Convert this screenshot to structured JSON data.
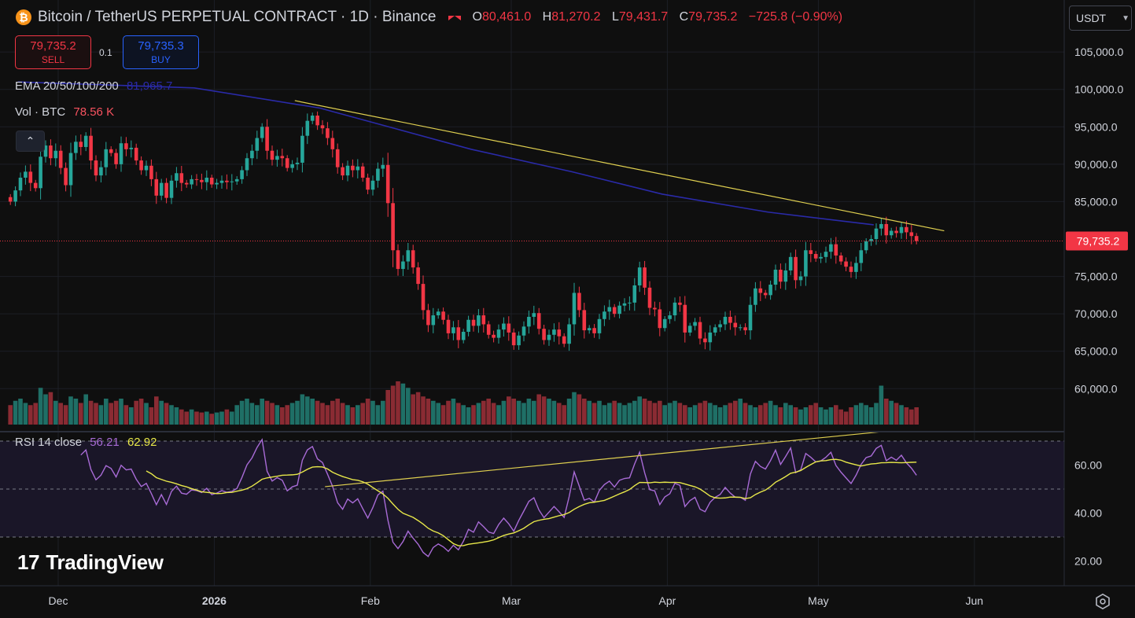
{
  "header": {
    "title": "Bitcoin / TetherUS PERPETUAL CONTRACT · 1D · Binance",
    "ohlc": {
      "o_label": "O",
      "o": "80,461.0",
      "h_label": "H",
      "h": "81,270.2",
      "l_label": "L",
      "l": "79,431.7",
      "c_label": "C",
      "c": "79,735.2",
      "change": "−725.8 (−0.90%)"
    },
    "currency": "USDT"
  },
  "trade": {
    "sell_price": "79,735.2",
    "sell_label": "SELL",
    "qty": "0.1",
    "buy_price": "79,735.3",
    "buy_label": "BUY"
  },
  "legends": {
    "ema_label": "EMA 20/50/100/200",
    "ema_value": "81,965.7",
    "vol_label": "Vol · BTC",
    "vol_value": "78.56 K",
    "rsi_label": "RSI 14 close",
    "rsi_value": "56.21",
    "rsi_ma_value": "62.92"
  },
  "brand": {
    "logo_text": "TradingView"
  },
  "colors": {
    "up": "#26a69a",
    "down": "#f23645",
    "ema": "#2a2aa8",
    "trend": "#e0d050",
    "rsi": "#a86bd6",
    "rsi_ma": "#e8e84a"
  },
  "icons": {
    "collapse": "chevron-up-icon",
    "settings": "settings-icon",
    "currency": "chevron-down-icon",
    "symbol": "bitcoin-icon"
  },
  "chart_data": {
    "type": "candlestick",
    "price_axis": {
      "ticks": [
        105000,
        100000,
        95000,
        90000,
        85000,
        75000,
        70000,
        65000,
        60000
      ],
      "tick_labels": [
        "105,000.0",
        "100,000.0",
        "95,000.0",
        "90,000.0",
        "85,000.0",
        "75,000.0",
        "70,000.0",
        "65,000.0",
        "60,000.0"
      ],
      "last_price": 79735.2,
      "last_price_label": "79,735.2"
    },
    "rsi_axis": {
      "ticks": [
        60,
        40,
        20
      ],
      "tick_labels": [
        "60.00",
        "40.00",
        "20.00"
      ],
      "band": [
        30,
        70
      ]
    },
    "time_axis": {
      "labels": [
        "Dec",
        "2026",
        "Feb",
        "Mar",
        "Apr",
        "May",
        "Jun"
      ],
      "label_dates": [
        "2025-12-01",
        "2026-01-01",
        "2026-02-01",
        "2026-03-01",
        "2026-04-01",
        "2026-05-01",
        "2026-06-01"
      ]
    },
    "start_date": "2025-11-21",
    "closes": [
      85000,
      86500,
      88200,
      89000,
      87500,
      86800,
      91000,
      92500,
      90800,
      91800,
      89500,
      87200,
      91500,
      93000,
      92300,
      93800,
      90500,
      88500,
      89600,
      92000,
      91500,
      90000,
      92800,
      92000,
      92200,
      90500,
      89200,
      89800,
      88000,
      85800,
      87500,
      85500,
      87800,
      88800,
      87500,
      87300,
      88000,
      87900,
      87600,
      88200,
      87300,
      87500,
      87800,
      87600,
      87700,
      88000,
      89200,
      90800,
      91800,
      93500,
      95000,
      91800,
      90600,
      91100,
      90800,
      89500,
      90000,
      90200,
      93800,
      95800,
      96500,
      95200,
      94800,
      93500,
      92000,
      89600,
      88500,
      89800,
      89200,
      89700,
      88200,
      86600,
      87800,
      89400,
      89900,
      84800,
      78500,
      76000,
      77000,
      78500,
      76200,
      74000,
      70500,
      68500,
      69800,
      70300,
      69200,
      67400,
      68200,
      66500,
      67600,
      69200,
      68400,
      69800,
      68600,
      67200,
      66800,
      67900,
      68700,
      67500,
      65800,
      67100,
      68300,
      69600,
      70100,
      68000,
      66500,
      67200,
      67900,
      67000,
      66000,
      68600,
      72800,
      70500,
      67800,
      68100,
      67400,
      69300,
      70300,
      70900,
      70000,
      71100,
      71400,
      71500,
      73800,
      76200,
      73500,
      70800,
      70600,
      68100,
      69300,
      69800,
      71500,
      71200,
      67500,
      68400,
      68900,
      66700,
      66200,
      67500,
      68200,
      68600,
      69600,
      68800,
      68200,
      68200,
      67800,
      71200,
      73400,
      72800,
      72500,
      73900,
      75900,
      74300,
      75800,
      77600,
      74500,
      75000,
      78500,
      78000,
      77400,
      77600,
      78300,
      79300,
      77800,
      77000,
      76300,
      75600,
      76800,
      78500,
      79700,
      80000,
      81400,
      82000,
      80500,
      81100,
      80800,
      81600,
      80900,
      80400,
      79735
    ],
    "ema200": [
      {
        "date": "2025-11-23",
        "value": 101000
      },
      {
        "date": "2025-12-28",
        "value": 100200
      },
      {
        "date": "2026-01-22",
        "value": 97500
      },
      {
        "date": "2026-02-21",
        "value": 92000
      },
      {
        "date": "2026-03-13",
        "value": 89000
      },
      {
        "date": "2026-03-31",
        "value": 86000
      },
      {
        "date": "2026-04-21",
        "value": 83600
      },
      {
        "date": "2026-05-12",
        "value": 81900
      }
    ],
    "price_trendline": [
      {
        "date": "2026-01-17",
        "value": 98500
      },
      {
        "date": "2026-05-26",
        "value": 81100
      }
    ],
    "volume_relative": [
      0.45,
      0.55,
      0.6,
      0.5,
      0.45,
      0.5,
      0.85,
      0.7,
      0.75,
      0.55,
      0.5,
      0.45,
      0.65,
      0.6,
      0.5,
      0.7,
      0.55,
      0.5,
      0.45,
      0.6,
      0.5,
      0.55,
      0.6,
      0.45,
      0.4,
      0.55,
      0.6,
      0.5,
      0.4,
      0.65,
      0.55,
      0.5,
      0.45,
      0.4,
      0.35,
      0.3,
      0.35,
      0.3,
      0.28,
      0.3,
      0.25,
      0.28,
      0.3,
      0.35,
      0.3,
      0.45,
      0.55,
      0.6,
      0.5,
      0.45,
      0.6,
      0.55,
      0.5,
      0.45,
      0.4,
      0.45,
      0.5,
      0.55,
      0.7,
      0.65,
      0.6,
      0.55,
      0.5,
      0.45,
      0.55,
      0.6,
      0.5,
      0.45,
      0.4,
      0.45,
      0.5,
      0.6,
      0.55,
      0.45,
      0.55,
      0.8,
      0.9,
      1.0,
      0.95,
      0.85,
      0.7,
      0.75,
      0.65,
      0.6,
      0.55,
      0.5,
      0.45,
      0.55,
      0.6,
      0.5,
      0.45,
      0.4,
      0.45,
      0.5,
      0.55,
      0.6,
      0.5,
      0.45,
      0.55,
      0.65,
      0.6,
      0.55,
      0.5,
      0.6,
      0.55,
      0.7,
      0.65,
      0.6,
      0.55,
      0.5,
      0.45,
      0.6,
      0.75,
      0.7,
      0.6,
      0.55,
      0.5,
      0.55,
      0.45,
      0.5,
      0.55,
      0.5,
      0.45,
      0.5,
      0.55,
      0.65,
      0.6,
      0.55,
      0.5,
      0.55,
      0.45,
      0.5,
      0.55,
      0.5,
      0.45,
      0.4,
      0.45,
      0.5,
      0.55,
      0.5,
      0.45,
      0.4,
      0.45,
      0.5,
      0.55,
      0.6,
      0.5,
      0.45,
      0.4,
      0.45,
      0.5,
      0.55,
      0.45,
      0.4,
      0.5,
      0.45,
      0.4,
      0.35,
      0.4,
      0.45,
      0.5,
      0.4,
      0.35,
      0.4,
      0.45,
      0.35,
      0.3,
      0.4,
      0.45,
      0.5,
      0.45,
      0.4,
      0.5,
      0.9,
      0.6,
      0.55,
      0.5,
      0.45,
      0.4,
      0.35,
      0.4,
      0.45,
      0.38,
      0.32
    ],
    "rsi_trendline": [
      {
        "date": "2026-01-23",
        "value": 51
      },
      {
        "date": "2026-05-14",
        "value": 74
      }
    ]
  }
}
